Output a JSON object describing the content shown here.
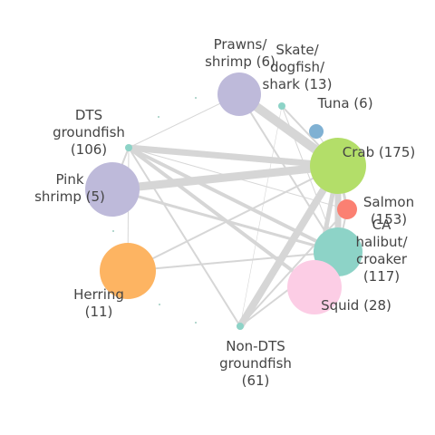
{
  "network": {
    "nodes": [
      {
        "id": "prawns",
        "label_lines": [
          "Prawns/",
          "shrimp (6)"
        ],
        "color": "#bebada"
      },
      {
        "id": "skate",
        "label_lines": [
          "Skate/",
          "dogfish/",
          "shark (13)"
        ],
        "color": "#8dd3c7"
      },
      {
        "id": "tuna",
        "label_lines": [
          "Tuna (6)"
        ],
        "color": "#80b1d3"
      },
      {
        "id": "dts",
        "label_lines": [
          "DTS",
          "groundfish",
          "(106)"
        ],
        "color": "#8dd3c7"
      },
      {
        "id": "crab",
        "label_lines": [
          "Crab (175)"
        ],
        "color": "#b3de69"
      },
      {
        "id": "pink",
        "label_lines": [
          "Pink",
          "shrimp (5)"
        ],
        "color": "#bebada"
      },
      {
        "id": "salmon",
        "label_lines": [
          "Salmon",
          "(153)"
        ],
        "color": "#fb8072"
      },
      {
        "id": "halibut",
        "label_lines": [
          "CA",
          "halibut/",
          "croaker",
          "(117)"
        ],
        "color": "#8dd3c7"
      },
      {
        "id": "herring",
        "label_lines": [
          "Herring",
          "(11)"
        ],
        "color": "#fdb462"
      },
      {
        "id": "squid",
        "label_lines": [
          "Squid (28)"
        ],
        "color": "#fccde5"
      },
      {
        "id": "nondts",
        "label_lines": [
          "Non-DTS",
          "groundfish",
          "(61)"
        ],
        "color": "#8dd3c7"
      }
    ],
    "edges": [
      {
        "from": "crab",
        "to": "prawns",
        "weight": 10
      },
      {
        "from": "crab",
        "to": "dts",
        "weight": 7
      },
      {
        "from": "crab",
        "to": "pink",
        "weight": 9
      },
      {
        "from": "crab",
        "to": "halibut",
        "weight": 7
      },
      {
        "from": "crab",
        "to": "nondts",
        "weight": 8
      },
      {
        "from": "crab",
        "to": "squid",
        "weight": 5
      },
      {
        "from": "crab",
        "to": "skate",
        "weight": 2
      },
      {
        "from": "crab",
        "to": "tuna",
        "weight": 1
      },
      {
        "from": "crab",
        "to": "salmon",
        "weight": 3
      },
      {
        "from": "crab",
        "to": "herring",
        "weight": 2
      },
      {
        "from": "dts",
        "to": "halibut",
        "weight": 4
      },
      {
        "from": "dts",
        "to": "pink",
        "weight": 2
      },
      {
        "from": "dts",
        "to": "nondts",
        "weight": 2
      },
      {
        "from": "dts",
        "to": "squid",
        "weight": 4
      },
      {
        "from": "dts",
        "to": "salmon",
        "weight": 1
      },
      {
        "from": "dts",
        "to": "prawns",
        "weight": 1
      },
      {
        "from": "dts",
        "to": "herring",
        "weight": 1
      },
      {
        "from": "pink",
        "to": "halibut",
        "weight": 3
      },
      {
        "from": "herring",
        "to": "halibut",
        "weight": 2
      },
      {
        "from": "halibut",
        "to": "squid",
        "weight": 8
      },
      {
        "from": "halibut",
        "to": "salmon",
        "weight": 2
      },
      {
        "from": "halibut",
        "to": "nondts",
        "weight": 2
      },
      {
        "from": "nondts",
        "to": "salmon",
        "weight": 2
      },
      {
        "from": "skate",
        "to": "nondts",
        "weight": 0.6
      },
      {
        "from": "skate",
        "to": "halibut",
        "weight": 1
      },
      {
        "from": "prawns",
        "to": "halibut",
        "weight": 2
      }
    ]
  },
  "colors": {
    "edge": "#d6d6d6",
    "label": "#444444"
  }
}
